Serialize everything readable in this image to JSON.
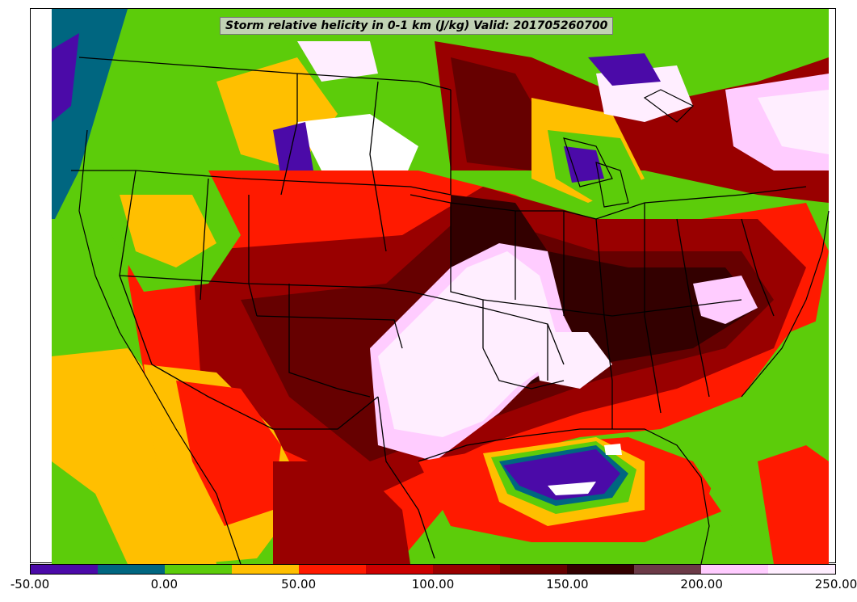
{
  "title": "Storm relative helicity in 0-1 km (J/kg) Valid: 201705260700",
  "colorbar": {
    "levels": [
      {
        "value": -50,
        "color": "#4b0aa8"
      },
      {
        "value": -25,
        "color": "#006680"
      },
      {
        "value": 0,
        "color": "#5ccc0a"
      },
      {
        "value": 25,
        "color": "#ffbf00"
      },
      {
        "value": 50,
        "color": "#ff1a00"
      },
      {
        "value": 75,
        "color": "#cc0000"
      },
      {
        "value": 100,
        "color": "#990000"
      },
      {
        "value": 125,
        "color": "#660000"
      },
      {
        "value": 150,
        "color": "#330000"
      },
      {
        "value": 175,
        "color": "#6b3a47"
      },
      {
        "value": 200,
        "color": "#ffccff"
      },
      {
        "value": 225,
        "color": "#ffeeff"
      }
    ],
    "tick_labels": [
      "-50.00",
      "0.00",
      "50.00",
      "100.00",
      "150.00",
      "200.00",
      "250.00"
    ]
  },
  "map": {
    "region": "CONUS",
    "field": "0-1 km storm relative helicity",
    "units": "J/kg",
    "valid_time": "201705260700",
    "overlays": [
      "coastlines",
      "state-borders",
      "country-borders"
    ]
  }
}
